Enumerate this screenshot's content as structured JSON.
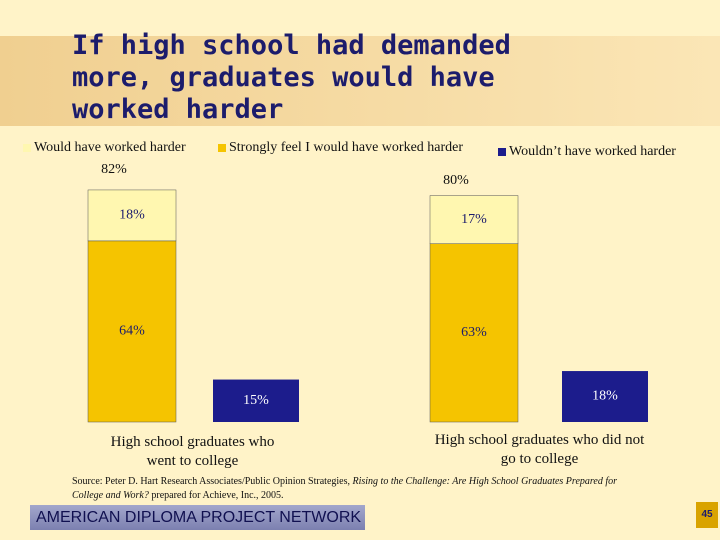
{
  "title": "If high school had demanded more, graduates would have worked harder",
  "chart_data": {
    "type": "stacked_bar",
    "categories": [
      "High school graduates who went to college",
      "High school graduates who did not go to college"
    ],
    "series": [
      {
        "name": "Would have worked harder",
        "color": "#fff7b0",
        "values": [
          18,
          17
        ],
        "value_labels": [
          "18%",
          "17%"
        ]
      },
      {
        "name": "Strongly feel I would have worked harder",
        "color": "#f5c400",
        "values": [
          64,
          63
        ],
        "value_labels": [
          "64%",
          "63%"
        ]
      },
      {
        "name": "Wouldn’t have worked harder",
        "color": "#1c1c8c",
        "values": [
          15,
          18
        ],
        "value_labels": [
          "15%",
          "18%"
        ]
      }
    ],
    "totals": {
      "values": [
        82,
        80
      ],
      "value_labels": [
        "82%",
        "80%"
      ]
    }
  },
  "source": {
    "prefix": "Source: Peter D. Hart Research Associates/Public Opinion Strategies, ",
    "title": "Rising to the Challenge: Are High School Graduates Prepared for College and Work?",
    "suffix": " prepared for Achieve, Inc., 2005."
  },
  "footer": {
    "network": "AMERICAN DIPLOMA PROJECT NETWORK",
    "page": 45
  }
}
